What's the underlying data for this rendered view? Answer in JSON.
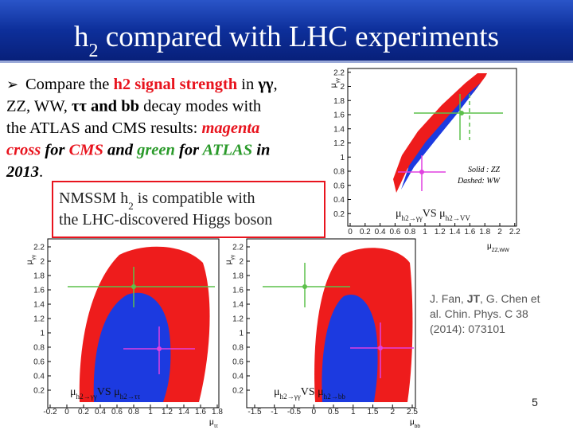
{
  "header": {
    "title": [
      {
        "text": "h"
      },
      {
        "text": "2",
        "style": "sub"
      },
      {
        "text": " compared with LHC experiments"
      }
    ]
  },
  "bullet": {
    "marker": "➢",
    "lines": [
      [
        {
          "text": "Compare the "
        },
        {
          "text": "h2 signal strength",
          "style": "red-bold"
        },
        {
          "text": " in "
        },
        {
          "text": "γγ",
          "style": "bold"
        },
        {
          "text": ","
        }
      ],
      [
        {
          "text": "ZZ, WW, "
        },
        {
          "text": "ττ and bb",
          "style": "bold"
        },
        {
          "text": "  decay modes with"
        }
      ],
      [
        {
          "text": "the ATLAS and CMS results: "
        },
        {
          "text": "magenta",
          "style": "red-bold-italic"
        }
      ],
      [
        {
          "text": "cross",
          "style": "red-bold-italic"
        },
        {
          "text": " for ",
          "style": "bold-italic"
        },
        {
          "text": "CMS",
          "style": "red-bold-italic"
        },
        {
          "text": " and ",
          "style": "bold-italic"
        },
        {
          "text": "green",
          "style": "green-bold-italic"
        },
        {
          "text": " for ",
          "style": "bold-italic"
        },
        {
          "text": "ATLAS",
          "style": "green-bold-italic"
        },
        {
          "text": " in",
          "style": "bold-italic"
        }
      ],
      [
        {
          "text": "2013",
          "style": "bold-italic"
        },
        {
          "text": "."
        }
      ]
    ]
  },
  "note": {
    "lines": [
      [
        {
          "text": "NMSSM h"
        },
        {
          "text": "2",
          "style": "sub"
        },
        {
          "text": " is compatible with"
        }
      ],
      [
        {
          "text": "the LHC-discovered Higgs boson"
        }
      ]
    ]
  },
  "plots": [
    {
      "x_ticks": [
        0,
        0.2,
        0.4,
        0.6,
        0.8,
        1,
        1.2,
        1.4,
        1.6,
        1.8,
        2,
        2.2
      ],
      "y_ticks": [
        0.2,
        0.4,
        0.6,
        0.8,
        1,
        1.2,
        1.4,
        1.6,
        1.8,
        2,
        2.2
      ],
      "x_label": [
        {
          "text": "μ"
        },
        {
          "text": "ZZ,WW",
          "style": "sub"
        }
      ],
      "y_label": [
        {
          "text": "μ"
        },
        {
          "text": "γγ",
          "style": "sub"
        }
      ],
      "legend": [
        "Solid : ZZ",
        "Dashed: WW"
      ],
      "caption": [
        {
          "text": "μ"
        },
        {
          "text": "h2→γγ",
          "style": "sub"
        },
        {
          "text": "VS μ"
        },
        {
          "text": "h2→VV",
          "style": "sub"
        }
      ]
    },
    {
      "x_ticks": [
        -0.2,
        0,
        0.2,
        0.4,
        0.6,
        0.8,
        1,
        1.2,
        1.4,
        1.6,
        1.8
      ],
      "y_ticks": [
        0.2,
        0.4,
        0.6,
        0.8,
        1,
        1.2,
        1.4,
        1.6,
        1.8,
        2,
        2.2
      ],
      "x_label": [
        {
          "text": "μ"
        },
        {
          "text": "ττ",
          "style": "sub"
        }
      ],
      "y_label": [
        {
          "text": "μ"
        },
        {
          "text": "γγ",
          "style": "sub"
        }
      ],
      "caption": [
        {
          "text": "μ"
        },
        {
          "text": "h2→γγ",
          "style": "sub"
        },
        {
          "text": "VS μ"
        },
        {
          "text": "h2→ττ",
          "style": "sub"
        }
      ]
    },
    {
      "x_ticks": [
        -1.5,
        -1,
        -0.5,
        0,
        0.5,
        1,
        1.5,
        2,
        2.5
      ],
      "y_ticks": [
        0.2,
        0.4,
        0.6,
        0.8,
        1,
        1.2,
        1.4,
        1.6,
        1.8,
        2,
        2.2
      ],
      "x_label": [
        {
          "text": "μ"
        },
        {
          "text": "bb",
          "style": "sub"
        }
      ],
      "y_label": [
        {
          "text": "μ"
        },
        {
          "text": "γγ",
          "style": "sub"
        }
      ],
      "caption": [
        {
          "text": "μ"
        },
        {
          "text": "h2→γγ",
          "style": "sub"
        },
        {
          "text": "VS μ"
        },
        {
          "text": "h2→bb",
          "style": "sub"
        }
      ]
    }
  ],
  "citation": {
    "lines": [
      [
        {
          "text": "J. Fan, "
        },
        {
          "text": "JT",
          "style": "bold"
        },
        {
          "text": ", G. Chen et"
        }
      ],
      [
        {
          "text": "al.  Chin. Phys. C 38"
        }
      ],
      [
        {
          "text": "(2014): 073101"
        }
      ]
    ]
  },
  "page_number": "5"
}
